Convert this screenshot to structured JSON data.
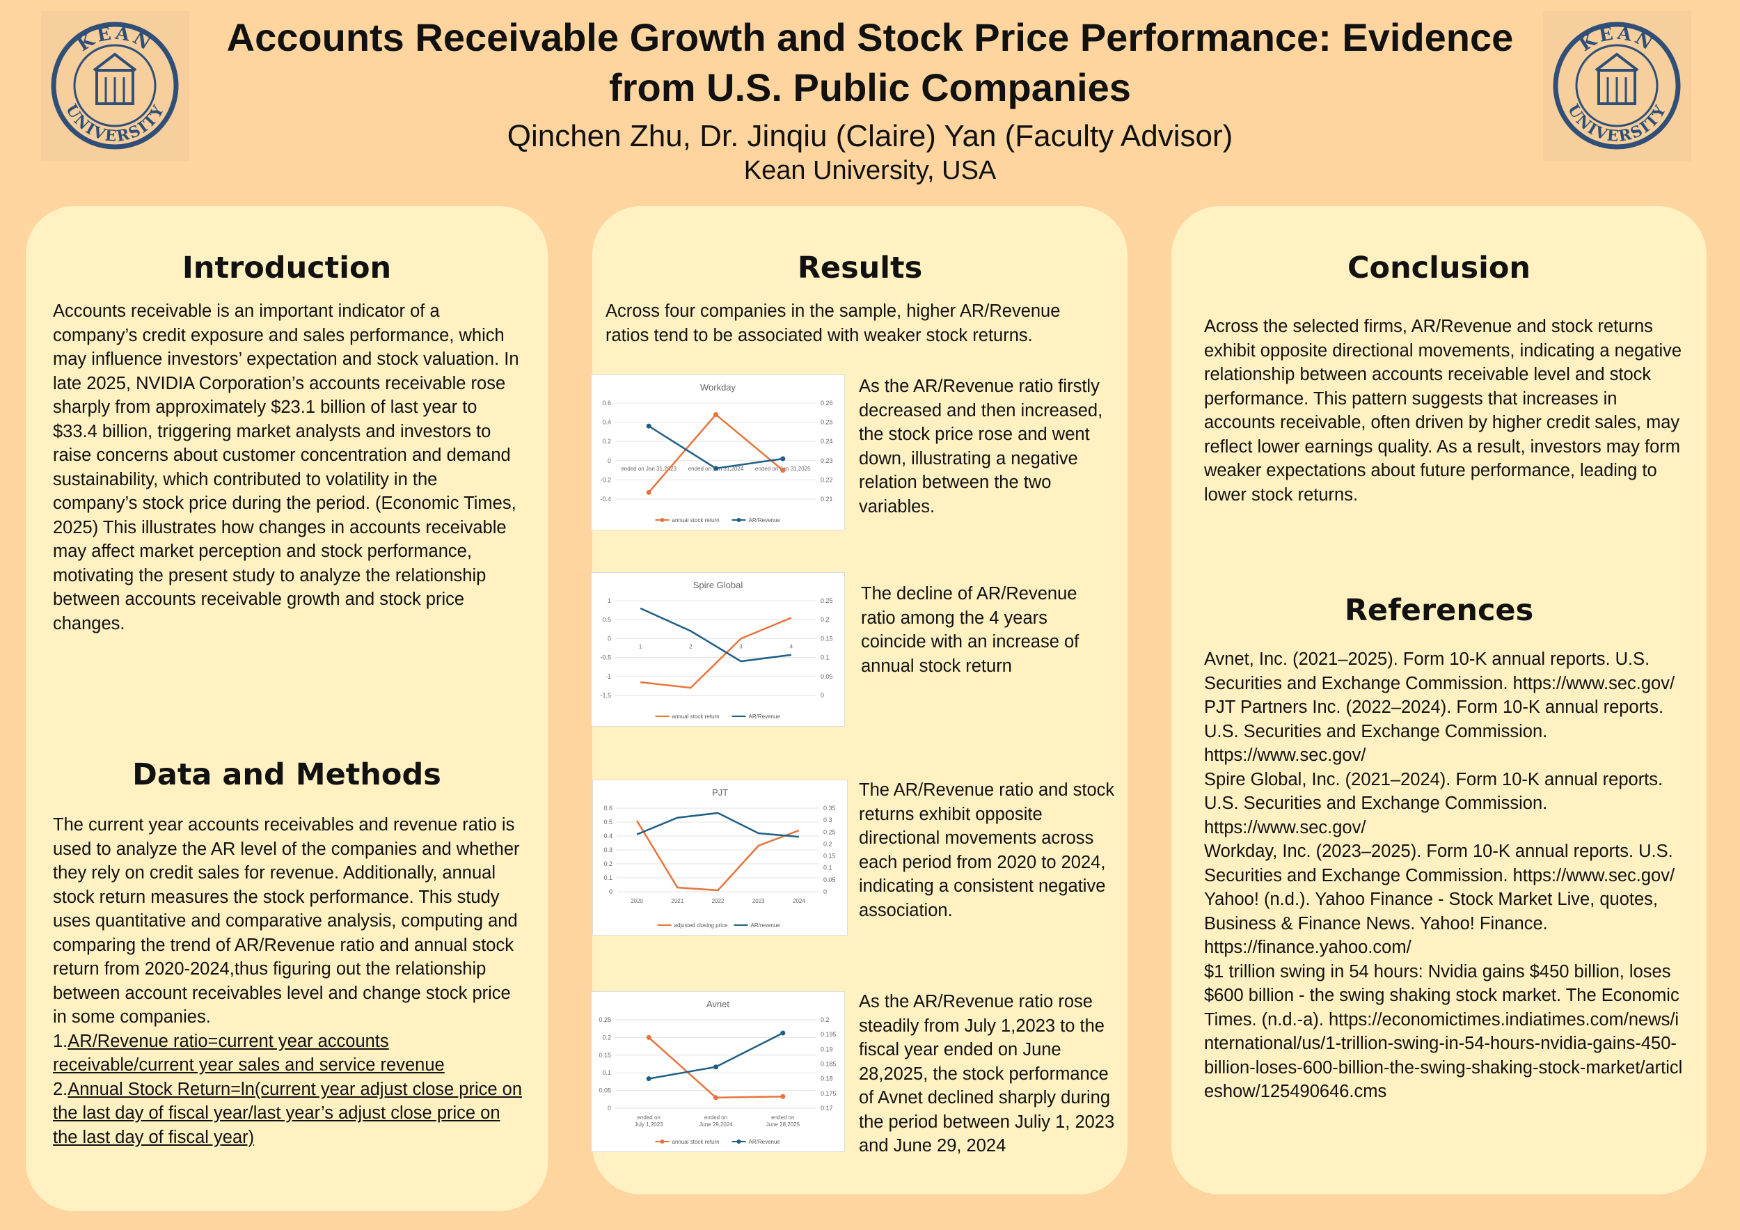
{
  "poster": {
    "title": "Accounts Receivable Growth and Stock Price Performance: Evidence from U.S. Public Companies",
    "authors": "Qinchen Zhu, Dr. Jinqiu (Claire) Yan (Faculty Advisor)",
    "affiliation": "Kean University, USA",
    "logo_text_top": "KEAN",
    "logo_text_bottom": "UNIVERSITY"
  },
  "introduction": {
    "heading": "Introduction",
    "text": "Accounts receivable is an important indicator of a company’s credit exposure and sales performance, which may influence investors’ expectation and stock valuation. In late 2025, NVIDIA Corporation’s accounts receivable rose sharply from approximately $23.1 billion of last year to $33.4 billion, triggering market analysts and investors to raise concerns about customer concentration and demand sustainability, which contributed to volatility in the company’s stock price during the period. (Economic Times, 2025) This illustrates how changes in accounts receivable may affect market perception and stock performance, motivating the present study to analyze the relationship between accounts receivable growth and stock price changes."
  },
  "methods": {
    "heading": "Data and Methods",
    "text": "The current year accounts receivables and revenue ratio is used to analyze the AR level of the companies and whether they rely on credit sales for revenue. Additionally, annual stock return measures the stock performance. This study uses quantitative and comparative analysis, computing and comparing the trend of AR/Revenue ratio and annual stock return from 2020-2024,thus figuring out the relationship between account receivables level and change stock price in some companies.",
    "formula1_prefix": "1.",
    "formula1": "AR/Revenue ratio=current year accounts receivable/current year sales and service revenue",
    "formula2_prefix": "2.",
    "formula2": "Annual Stock Return=ln(current year adjust close price on the last day of fiscal year/last year’s adjust close price on the last day of fiscal year)"
  },
  "results": {
    "heading": "Results",
    "intro": "Across four companies in the sample, higher AR/Revenue ratios tend to be associated with weaker stock returns.",
    "desc_workday": "As the AR/Revenue ratio firstly decreased and then increased, the stock price rose and went down, illustrating a negative relation between the two variables.",
    "desc_spire": "The decline of AR/Revenue ratio among the 4 years coincide with an increase of annual stock return",
    "desc_pjt": "The AR/Revenue ratio and stock returns exhibit opposite directional movements across each period from 2020 to 2024, indicating a consistent negative association.",
    "desc_avnet": "As the AR/Revenue ratio rose steadily from July 1,2023 to the fiscal year ended on June 28,2025, the stock performance of Avnet declined sharply during the period between Juliy 1, 2023 and June 29, 2024"
  },
  "conclusion": {
    "heading": "Conclusion",
    "text": "Across the selected firms, AR/Revenue and stock returns exhibit opposite directional movements, indicating a negative relationship between accounts receivable level and stock performance. This pattern suggests that increases in accounts receivable, often driven by higher credit sales, may reflect lower earnings quality. As a result, investors may form weaker expectations about future performance, leading to lower stock returns."
  },
  "references": {
    "heading": "References",
    "items": [
      "Avnet, Inc. (2021–2025). Form 10-K annual reports. U.S. Securities and Exchange Commission. https://www.sec.gov/",
      "PJT Partners Inc. (2022–2024). Form 10-K annual reports. U.S. Securities and Exchange Commission. https://www.sec.gov/",
      "Spire Global, Inc. (2021–2024). Form 10-K annual reports. U.S. Securities and Exchange Commission. https://www.sec.gov/",
      "Workday, Inc. (2023–2025). Form 10-K annual reports. U.S. Securities and Exchange Commission. https://www.sec.gov/",
      "Yahoo! (n.d.). Yahoo Finance - Stock Market Live, quotes, Business & Finance News. Yahoo! Finance. https://finance.yahoo.com/",
      "$1 trillion swing in 54 hours: Nvidia gains $450 billion, loses $600 billion - the swing shaking stock market. The Economic Times. (n.d.-a). https://economictimes.indiatimes.com/news/international/us/1-trillion-swing-in-54-hours-nvidia-gains-450-billion-loses-600-billion-the-swing-shaking-stock-market/articleshow/125490646.cms"
    ]
  },
  "colors": {
    "orange_series": "#e8733a",
    "blue_series": "#1f5f85",
    "panel": "#fff1c2",
    "background": "#fed59f"
  },
  "chart_data": [
    {
      "id": "workday",
      "type": "line",
      "title": "Workday",
      "categories": [
        "ended on Jan 31,2023",
        "ended on Jan 31,2024",
        "ended on Jan 31,2025"
      ],
      "markers": true,
      "cat_labels_in_plot": true,
      "series": [
        {
          "name": "annual stock return",
          "values": [
            -0.33,
            0.48,
            -0.1
          ],
          "axis": "left",
          "color": "#e8733a"
        },
        {
          "name": "AR/Revenue",
          "values": [
            0.248,
            0.226,
            0.231
          ],
          "axis": "right",
          "color": "#1f5f85"
        }
      ],
      "ylim": [
        -0.4,
        0.6
      ],
      "yticks": [
        -0.4,
        -0.2,
        0,
        0.2,
        0.4,
        0.6
      ],
      "y2lim": [
        0.21,
        0.26
      ],
      "y2ticks": [
        0.21,
        0.22,
        0.23,
        0.24,
        0.25,
        0.26
      ],
      "legend": "bottom"
    },
    {
      "id": "spire",
      "type": "line",
      "title": "Spire Global",
      "categories": [
        "1",
        "2",
        "3",
        "4"
      ],
      "markers": false,
      "cat_labels_in_plot": true,
      "series": [
        {
          "name": "annual stock return",
          "values": [
            -1.15,
            -1.3,
            0.0,
            0.55
          ],
          "axis": "left",
          "color": "#e8733a"
        },
        {
          "name": "AR/Revenue",
          "values": [
            0.23,
            0.17,
            0.09,
            0.107
          ],
          "axis": "right",
          "color": "#1f5f85"
        }
      ],
      "ylim": [
        -1.5,
        1
      ],
      "yticks": [
        -1.5,
        -1,
        -0.5,
        0,
        0.5,
        1
      ],
      "y2lim": [
        0,
        0.25
      ],
      "y2ticks": [
        0,
        0.05,
        0.1,
        0.15,
        0.2,
        0.25
      ],
      "legend": "bottom"
    },
    {
      "id": "pjt",
      "type": "line",
      "title": "PJT",
      "categories": [
        "2020",
        "2021",
        "2022",
        "2023",
        "2024"
      ],
      "markers": false,
      "cat_labels_in_plot": false,
      "series": [
        {
          "name": "adjusted closing price",
          "values": [
            0.51,
            0.03,
            0.01,
            0.33,
            0.44
          ],
          "axis": "left",
          "color": "#e8733a"
        },
        {
          "name": "AR/revenue",
          "values": [
            0.24,
            0.31,
            0.33,
            0.245,
            0.23
          ],
          "axis": "right",
          "color": "#1f5f85"
        }
      ],
      "ylim": [
        0,
        0.6
      ],
      "yticks": [
        0,
        0.1,
        0.2,
        0.3,
        0.4,
        0.5,
        0.6
      ],
      "y2lim": [
        0,
        0.35
      ],
      "y2ticks": [
        0,
        0.05,
        0.1,
        0.15,
        0.2,
        0.25,
        0.3,
        0.35
      ],
      "legend": "bottom"
    },
    {
      "id": "avnet",
      "type": "line",
      "title": "Avnet",
      "categories": [
        "ended on July 1,2023",
        "ended on June 29,2024",
        "ended on June 28,2025"
      ],
      "markers": true,
      "cat_labels_in_plot": false,
      "series": [
        {
          "name": "annual stock return",
          "values": [
            0.2,
            0.03,
            0.033
          ],
          "axis": "left",
          "color": "#e8733a"
        },
        {
          "name": "AR/Revenue",
          "values": [
            0.18,
            0.184,
            0.1955
          ],
          "axis": "right",
          "color": "#1f5f85"
        }
      ],
      "ylim": [
        0,
        0.25
      ],
      "yticks": [
        0,
        0.05,
        0.1,
        0.15,
        0.2,
        0.25
      ],
      "y2lim": [
        0.17,
        0.2
      ],
      "y2ticks": [
        0.17,
        0.175,
        0.18,
        0.185,
        0.19,
        0.195,
        0.2
      ],
      "legend": "bottom"
    }
  ]
}
